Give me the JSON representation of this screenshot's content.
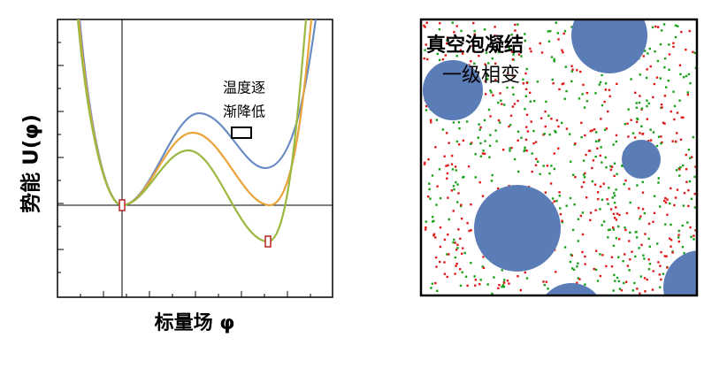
{
  "left_panel": {
    "y_label": "势能 U(φ)",
    "x_label": "标量场 φ",
    "annotation": [
      "温度逐",
      "渐降低"
    ]
  },
  "right_panel": {
    "title": "真空泡凝结",
    "subtitle": "一级相变"
  }
}
